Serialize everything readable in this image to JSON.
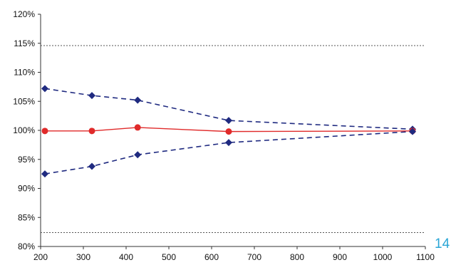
{
  "page_number": "14",
  "chart_data": {
    "type": "line",
    "x_unit": "ng",
    "xlim": [
      200,
      1100
    ],
    "ylim": [
      80,
      120
    ],
    "x_ticks": [
      200,
      300,
      400,
      500,
      600,
      700,
      800,
      900,
      1000,
      1100
    ],
    "y_ticks": [
      80,
      85,
      90,
      95,
      100,
      105,
      110,
      115,
      120
    ],
    "x_tick_labels": [
      "200",
      "300",
      "400",
      "500",
      "600",
      "700",
      "800",
      "900",
      "1000",
      "1100"
    ],
    "y_tick_labels": [
      "80%",
      "85%",
      "90%",
      "95%",
      "100%",
      "105%",
      "110%",
      "115%",
      "120%"
    ],
    "grid": false,
    "reference_lines": [
      {
        "y": 114.6,
        "color": "#555555",
        "style": "dotted"
      },
      {
        "y": 82.4,
        "color": "#555555",
        "style": "dotted"
      }
    ],
    "series": [
      {
        "x": [
          210,
          320,
          427,
          640,
          1070
        ],
        "y": [
          107.2,
          106.0,
          105.2,
          101.7,
          100.2
        ],
        "color": "#1f2a80",
        "line_style": "dashed",
        "marker": "diamond"
      },
      {
        "x": [
          210,
          320,
          427,
          640,
          1070
        ],
        "y": [
          99.9,
          99.9,
          100.5,
          99.8,
          99.9
        ],
        "color": "#e02a2a",
        "line_style": "solid",
        "marker": "circle"
      },
      {
        "x": [
          210,
          320,
          427,
          640,
          1070
        ],
        "y": [
          92.5,
          93.8,
          95.8,
          97.9,
          99.8
        ],
        "color": "#1f2a80",
        "line_style": "dashed",
        "marker": "diamond"
      }
    ]
  }
}
